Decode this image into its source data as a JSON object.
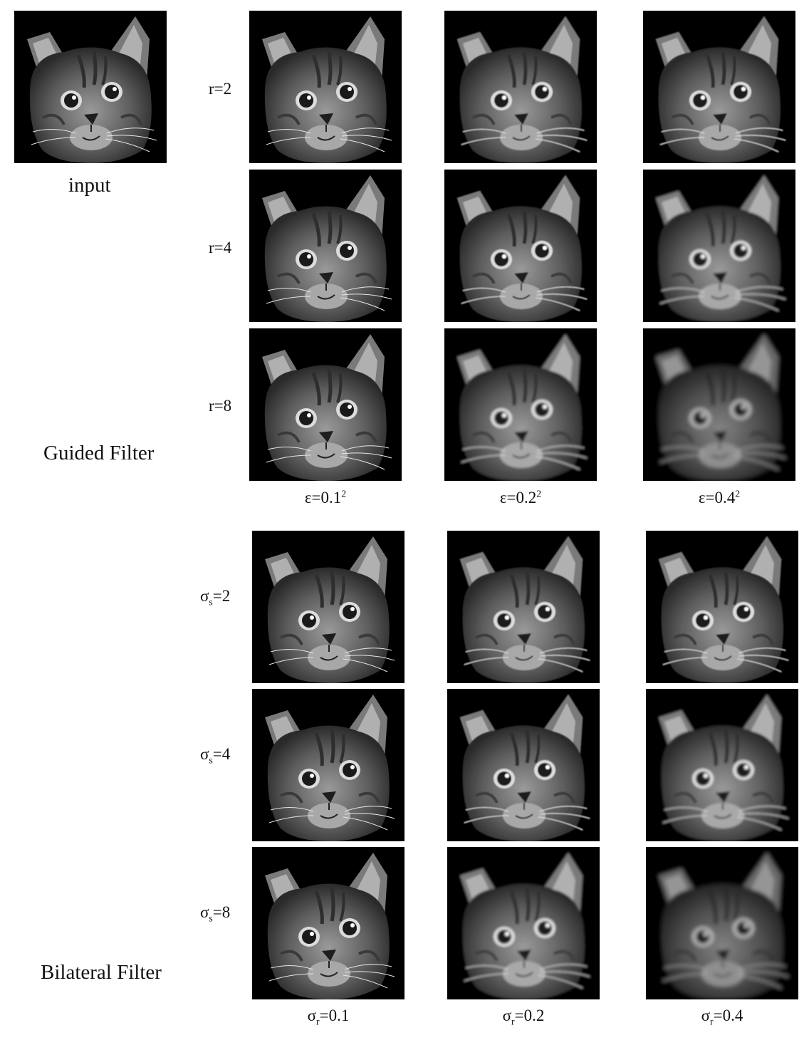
{
  "input_label": "input",
  "guided": {
    "title": "Guided Filter",
    "row_labels": [
      "r=2",
      "r=4",
      "r=8"
    ],
    "col_labels": [
      {
        "base": "ε=0.1",
        "sup": "2"
      },
      {
        "base": "ε=0.2",
        "sup": "2"
      },
      {
        "base": "ε=0.4",
        "sup": "2"
      }
    ]
  },
  "bilateral": {
    "title": "Bilateral Filter",
    "row_labels": [
      {
        "base": "σ",
        "sub": "s",
        "rest": "=2"
      },
      {
        "base": "σ",
        "sub": "s",
        "rest": "=4"
      },
      {
        "base": "σ",
        "sub": "s",
        "rest": "=8"
      }
    ],
    "col_labels": [
      {
        "base": "σ",
        "sub": "r",
        "rest": "=0.1"
      },
      {
        "base": "σ",
        "sub": "r",
        "rest": "=0.2"
      },
      {
        "base": "σ",
        "sub": "r",
        "rest": "=0.4"
      }
    ]
  }
}
